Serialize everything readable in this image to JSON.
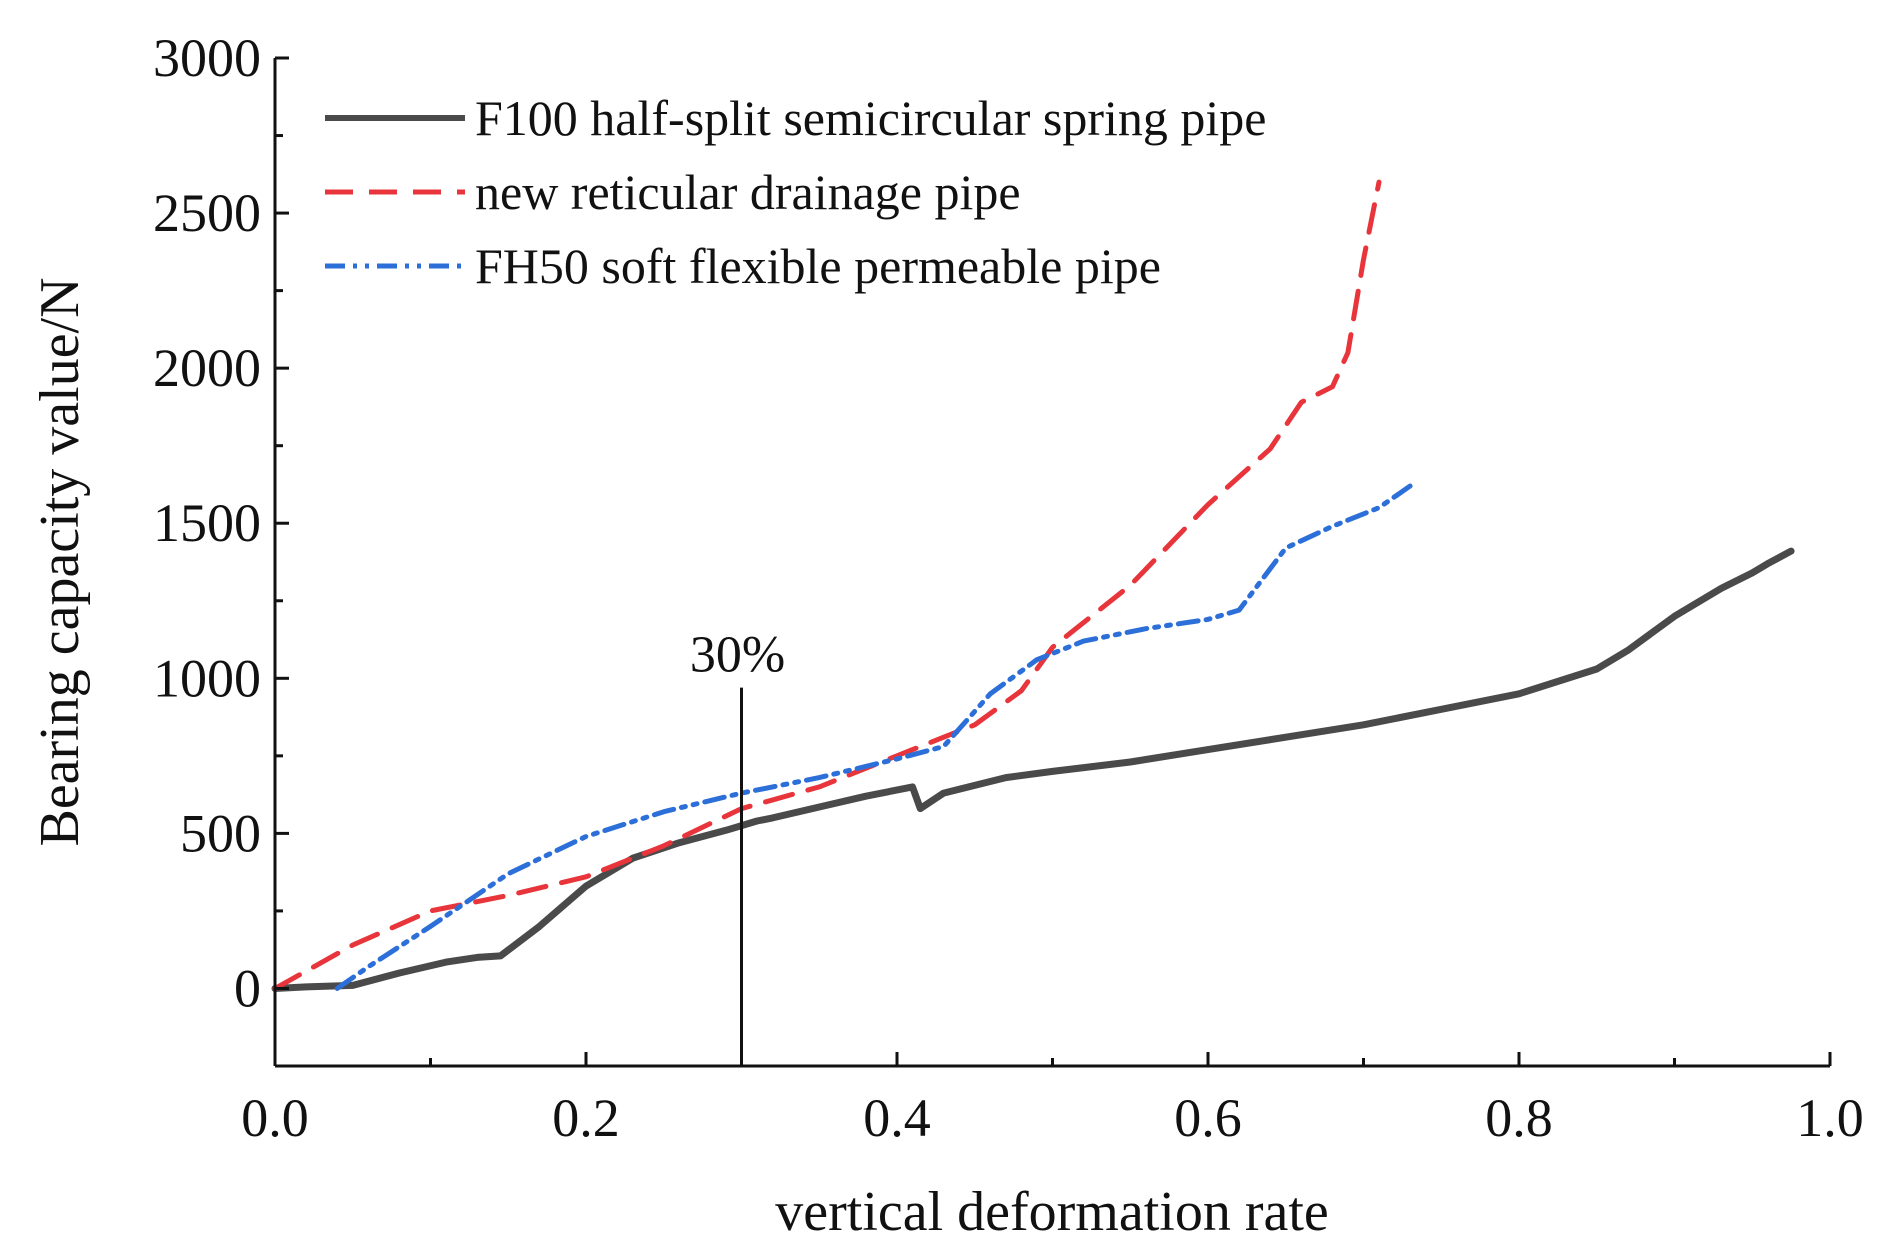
{
  "chart_data": {
    "type": "line",
    "title": "",
    "xlabel": "vertical deformation rate",
    "ylabel": "Bearing capacity value/N",
    "xlim": [
      0.0,
      1.0
    ],
    "ylim": [
      -250,
      3000
    ],
    "x_ticks": [
      0.0,
      0.2,
      0.4,
      0.6,
      0.8,
      1.0
    ],
    "x_tick_labels": [
      "0.0",
      "0.2",
      "0.4",
      "0.6",
      "0.8",
      "1.0"
    ],
    "y_ticks": [
      0,
      500,
      1000,
      1500,
      2000,
      2500,
      3000
    ],
    "y_tick_labels": [
      "0",
      "500",
      "1000",
      "1500",
      "2000",
      "2500",
      "3000"
    ],
    "grid": false,
    "legend_position": "top-left",
    "annotation": {
      "text": "30%",
      "x": 0.3,
      "y_range": [
        -250,
        970
      ]
    },
    "series": [
      {
        "name": "F100 half-split semicircular spring pipe",
        "color": "#4a4a4a",
        "style": "solid",
        "x": [
          0.0,
          0.02,
          0.05,
          0.08,
          0.11,
          0.13,
          0.145,
          0.17,
          0.2,
          0.23,
          0.26,
          0.29,
          0.31,
          0.32,
          0.35,
          0.38,
          0.41,
          0.415,
          0.43,
          0.47,
          0.5,
          0.55,
          0.6,
          0.65,
          0.7,
          0.75,
          0.8,
          0.85,
          0.87,
          0.9,
          0.93,
          0.95,
          0.96,
          0.975
        ],
        "y": [
          0,
          5,
          10,
          50,
          85,
          100,
          105,
          200,
          330,
          420,
          470,
          510,
          540,
          550,
          585,
          620,
          650,
          580,
          630,
          680,
          700,
          730,
          770,
          810,
          850,
          900,
          950,
          1030,
          1090,
          1200,
          1290,
          1340,
          1370,
          1410
        ]
      },
      {
        "name": "new reticular drainage pipe",
        "color": "#e8353b",
        "style": "dashed",
        "x": [
          0.0,
          0.05,
          0.1,
          0.15,
          0.2,
          0.25,
          0.3,
          0.35,
          0.4,
          0.45,
          0.48,
          0.5,
          0.55,
          0.6,
          0.64,
          0.66,
          0.68,
          0.69,
          0.7,
          0.71
        ],
        "y": [
          0,
          140,
          250,
          300,
          360,
          460,
          580,
          650,
          750,
          850,
          960,
          1100,
          1300,
          1560,
          1740,
          1890,
          1940,
          2050,
          2350,
          2600
        ]
      },
      {
        "name": "FH50 soft flexible permeable pipe",
        "color": "#2d6fd9",
        "style": "dashdotdot",
        "x": [
          0.04,
          0.06,
          0.1,
          0.15,
          0.2,
          0.25,
          0.3,
          0.35,
          0.4,
          0.43,
          0.46,
          0.49,
          0.52,
          0.56,
          0.6,
          0.62,
          0.65,
          0.68,
          0.71,
          0.73
        ],
        "y": [
          0,
          70,
          200,
          370,
          490,
          570,
          630,
          680,
          740,
          780,
          950,
          1060,
          1120,
          1160,
          1190,
          1220,
          1420,
          1490,
          1550,
          1620
        ]
      }
    ]
  }
}
